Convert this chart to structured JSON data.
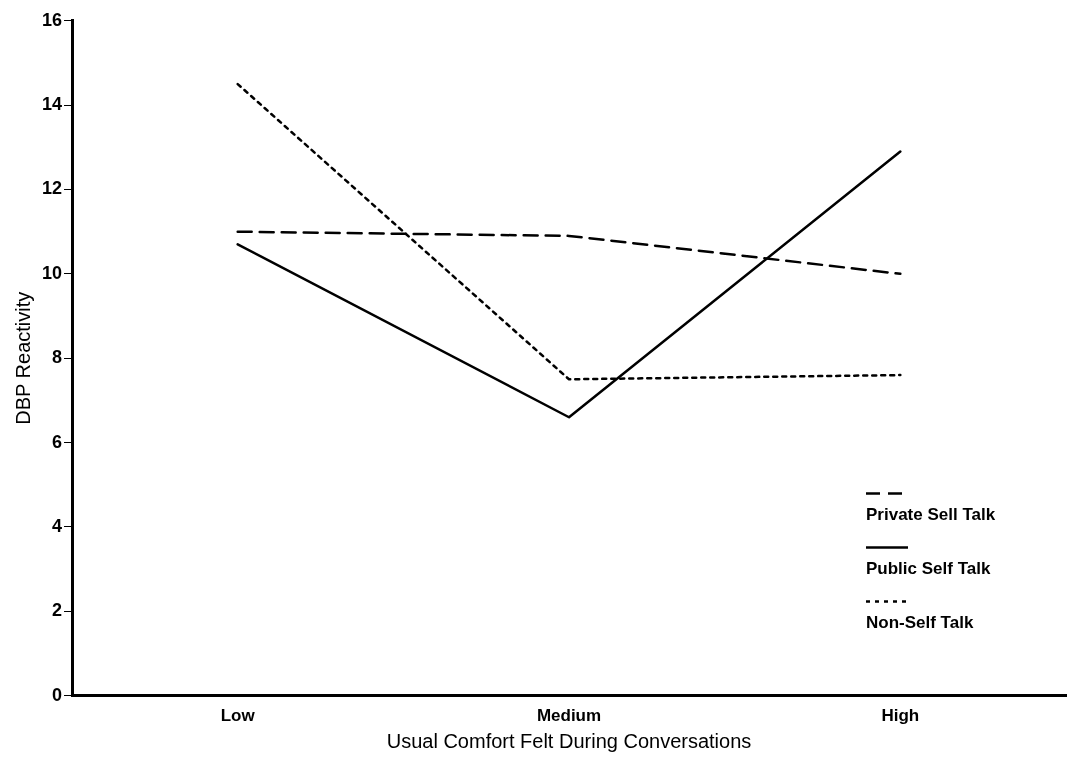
{
  "chart_data": {
    "type": "line",
    "xlabel": "Usual Comfort Felt During Conversations",
    "ylabel": "DBP Reactivity",
    "categories": [
      "Low",
      "Medium",
      "High"
    ],
    "series": [
      {
        "name": "Private Sell Talk",
        "color": "#000000",
        "line_style": "dashed",
        "values": [
          11.0,
          10.9,
          10.0
        ]
      },
      {
        "name": "Public Self Talk",
        "color": "#000000",
        "line_style": "solid",
        "values": [
          10.7,
          6.6,
          12.9
        ]
      },
      {
        "name": "Non-Self Talk",
        "color": "#000000",
        "line_style": "dotted",
        "values": [
          14.5,
          7.5,
          7.6
        ]
      }
    ],
    "ylim": [
      0,
      16
    ],
    "yticks": [
      0,
      2,
      4,
      6,
      8,
      10,
      12,
      14,
      16
    ],
    "grid": false,
    "legend": "bottom right",
    "marker": "none"
  }
}
